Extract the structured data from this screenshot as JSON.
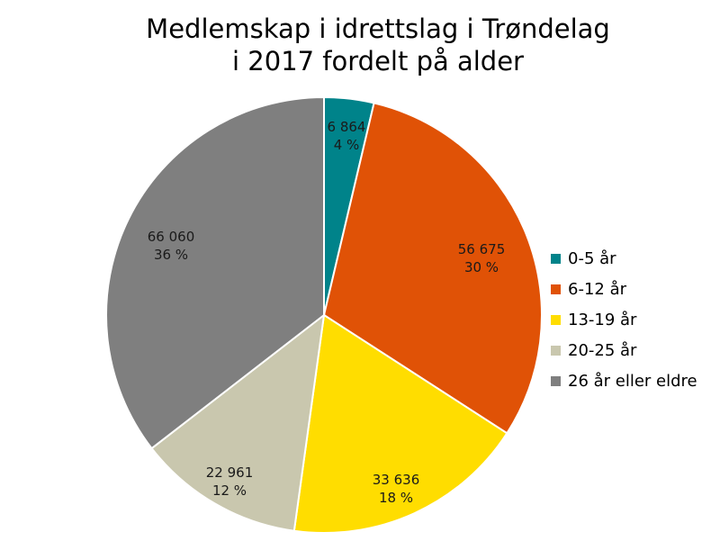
{
  "chart_data": {
    "type": "pie",
    "title_lines": [
      "Medlemskap i idrettslag i Trøndelag",
      "i 2017 fordelt på alder"
    ],
    "legend_position": "right",
    "slices": [
      {
        "name": "0-5 år",
        "value": 6864,
        "value_label": "6 864",
        "percent_label": "4 %",
        "color": "#00838a"
      },
      {
        "name": "6-12 år",
        "value": 56675,
        "value_label": "56 675",
        "percent_label": "30 %",
        "color": "#e05206"
      },
      {
        "name": "13-19 år",
        "value": 33636,
        "value_label": "33 636",
        "percent_label": "18 %",
        "color": "#ffdd00"
      },
      {
        "name": "20-25 år",
        "value": 22961,
        "value_label": "22 961",
        "percent_label": "12 %",
        "color": "#c9c7ae"
      },
      {
        "name": "26 år eller eldre",
        "value": 66060,
        "value_label": "66 060",
        "percent_label": "36 %",
        "color": "#7f7f7f"
      }
    ]
  }
}
